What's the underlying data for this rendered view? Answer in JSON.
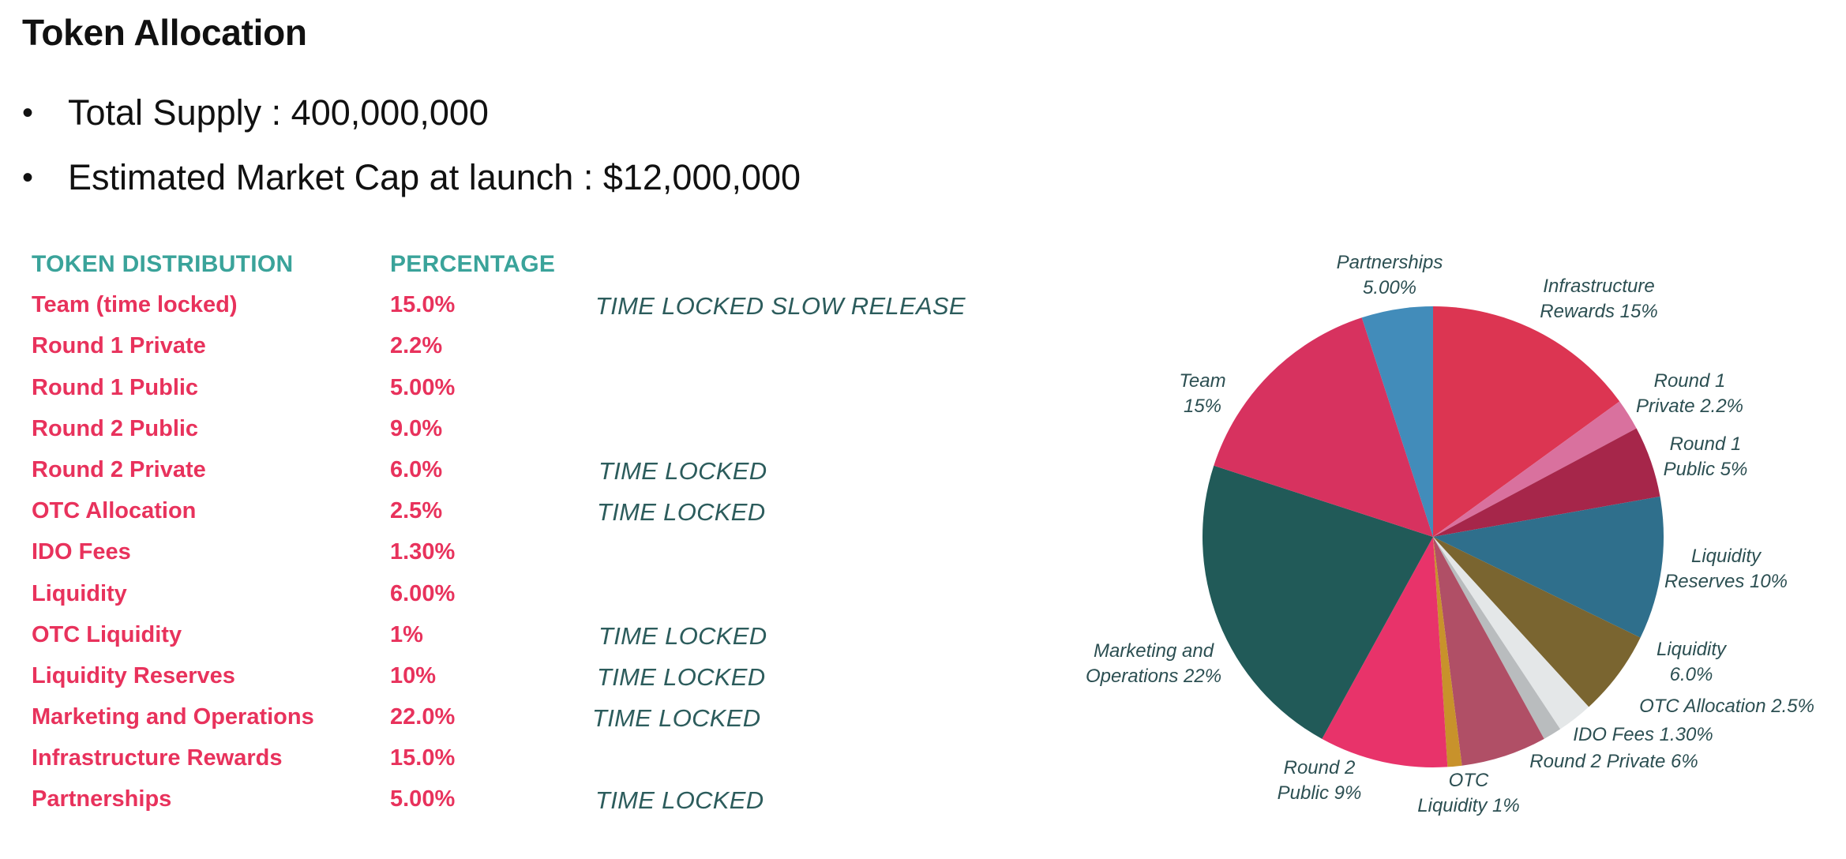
{
  "title": "Token Allocation",
  "bullets": [
    {
      "label": "Total Supply",
      "separator": " : ",
      "value": "400,000,000"
    },
    {
      "label": "Estimated Market Cap at launch",
      "separator": " : ",
      "value": "$12,000,000"
    }
  ],
  "distribution_table": {
    "headers": {
      "name": "TOKEN DISTRIBUTION",
      "percentage": "PERCENTAGE"
    },
    "rows": [
      {
        "name": "Team (time locked)",
        "percentage": "15.0%",
        "note": "TIME LOCKED SLOW RELEASE"
      },
      {
        "name": "Round 1 Private",
        "percentage": "2.2%",
        "note": ""
      },
      {
        "name": "Round 1 Public",
        "percentage": "5.00%",
        "note": ""
      },
      {
        "name": "Round 2 Public",
        "percentage": "9.0%",
        "note": ""
      },
      {
        "name": "Round 2 Private",
        "percentage": "6.0%",
        "note": "TIME LOCKED"
      },
      {
        "name": "OTC Allocation",
        "percentage": "2.5%",
        "note": "TIME LOCKED"
      },
      {
        "name": "IDO Fees",
        "percentage": "1.30%",
        "note": ""
      },
      {
        "name": "Liquidity",
        "percentage": "6.00%",
        "note": ""
      },
      {
        "name": "OTC Liquidity",
        "percentage": "1%",
        "note": "TIME LOCKED"
      },
      {
        "name": "Liquidity Reserves",
        "percentage": "10%",
        "note": "TIME LOCKED"
      },
      {
        "name": "Marketing and Operations",
        "percentage": "22.0%",
        "note": "TIME LOCKED"
      },
      {
        "name": "Infrastructure Rewards",
        "percentage": "15.0%",
        "note": ""
      },
      {
        "name": "Partnerships",
        "percentage": "5.00%",
        "note": "TIME LOCKED"
      }
    ]
  },
  "chart_data": {
    "type": "pie",
    "start_angle_deg": 0,
    "direction": "clockwise",
    "slices": [
      {
        "label_lines": [
          "Infrastructure",
          "Rewards 15%"
        ],
        "value": 15.0,
        "color": "#dc3552"
      },
      {
        "label_lines": [
          "Round 1",
          "Private 2.2%"
        ],
        "value": 2.2,
        "color": "#d9719e"
      },
      {
        "label_lines": [
          "Round 1",
          "Public 5%"
        ],
        "value": 5.0,
        "color": "#a6264a"
      },
      {
        "label_lines": [
          "Liquidity",
          "Reserves 10%"
        ],
        "value": 10.0,
        "color": "#2f6f8c"
      },
      {
        "label_lines": [
          "Liquidity",
          "6.0%"
        ],
        "value": 6.0,
        "color": "#7a6530"
      },
      {
        "label_lines": [
          "OTC Allocation 2.5%"
        ],
        "value": 2.5,
        "color": "#e4e7e8"
      },
      {
        "label_lines": [
          "IDO Fees 1.30%"
        ],
        "value": 1.3,
        "color": "#b9bcbe"
      },
      {
        "label_lines": [
          "Round 2 Private 6%"
        ],
        "value": 6.0,
        "color": "#b04f66"
      },
      {
        "label_lines": [
          "OTC",
          "Liquidity 1%"
        ],
        "value": 1.0,
        "color": "#c8922b"
      },
      {
        "label_lines": [
          "Round 2",
          "Public 9%"
        ],
        "value": 9.0,
        "color": "#e8336a"
      },
      {
        "label_lines": [
          "Marketing and",
          "Operations 22%"
        ],
        "value": 22.0,
        "color": "#215a58"
      },
      {
        "label_lines": [
          "Team",
          "15%"
        ],
        "value": 15.0,
        "color": "#d7325f"
      },
      {
        "label_lines": [
          "Partnerships",
          "5.00%"
        ],
        "value": 5.0,
        "color": "#428cba"
      }
    ]
  }
}
